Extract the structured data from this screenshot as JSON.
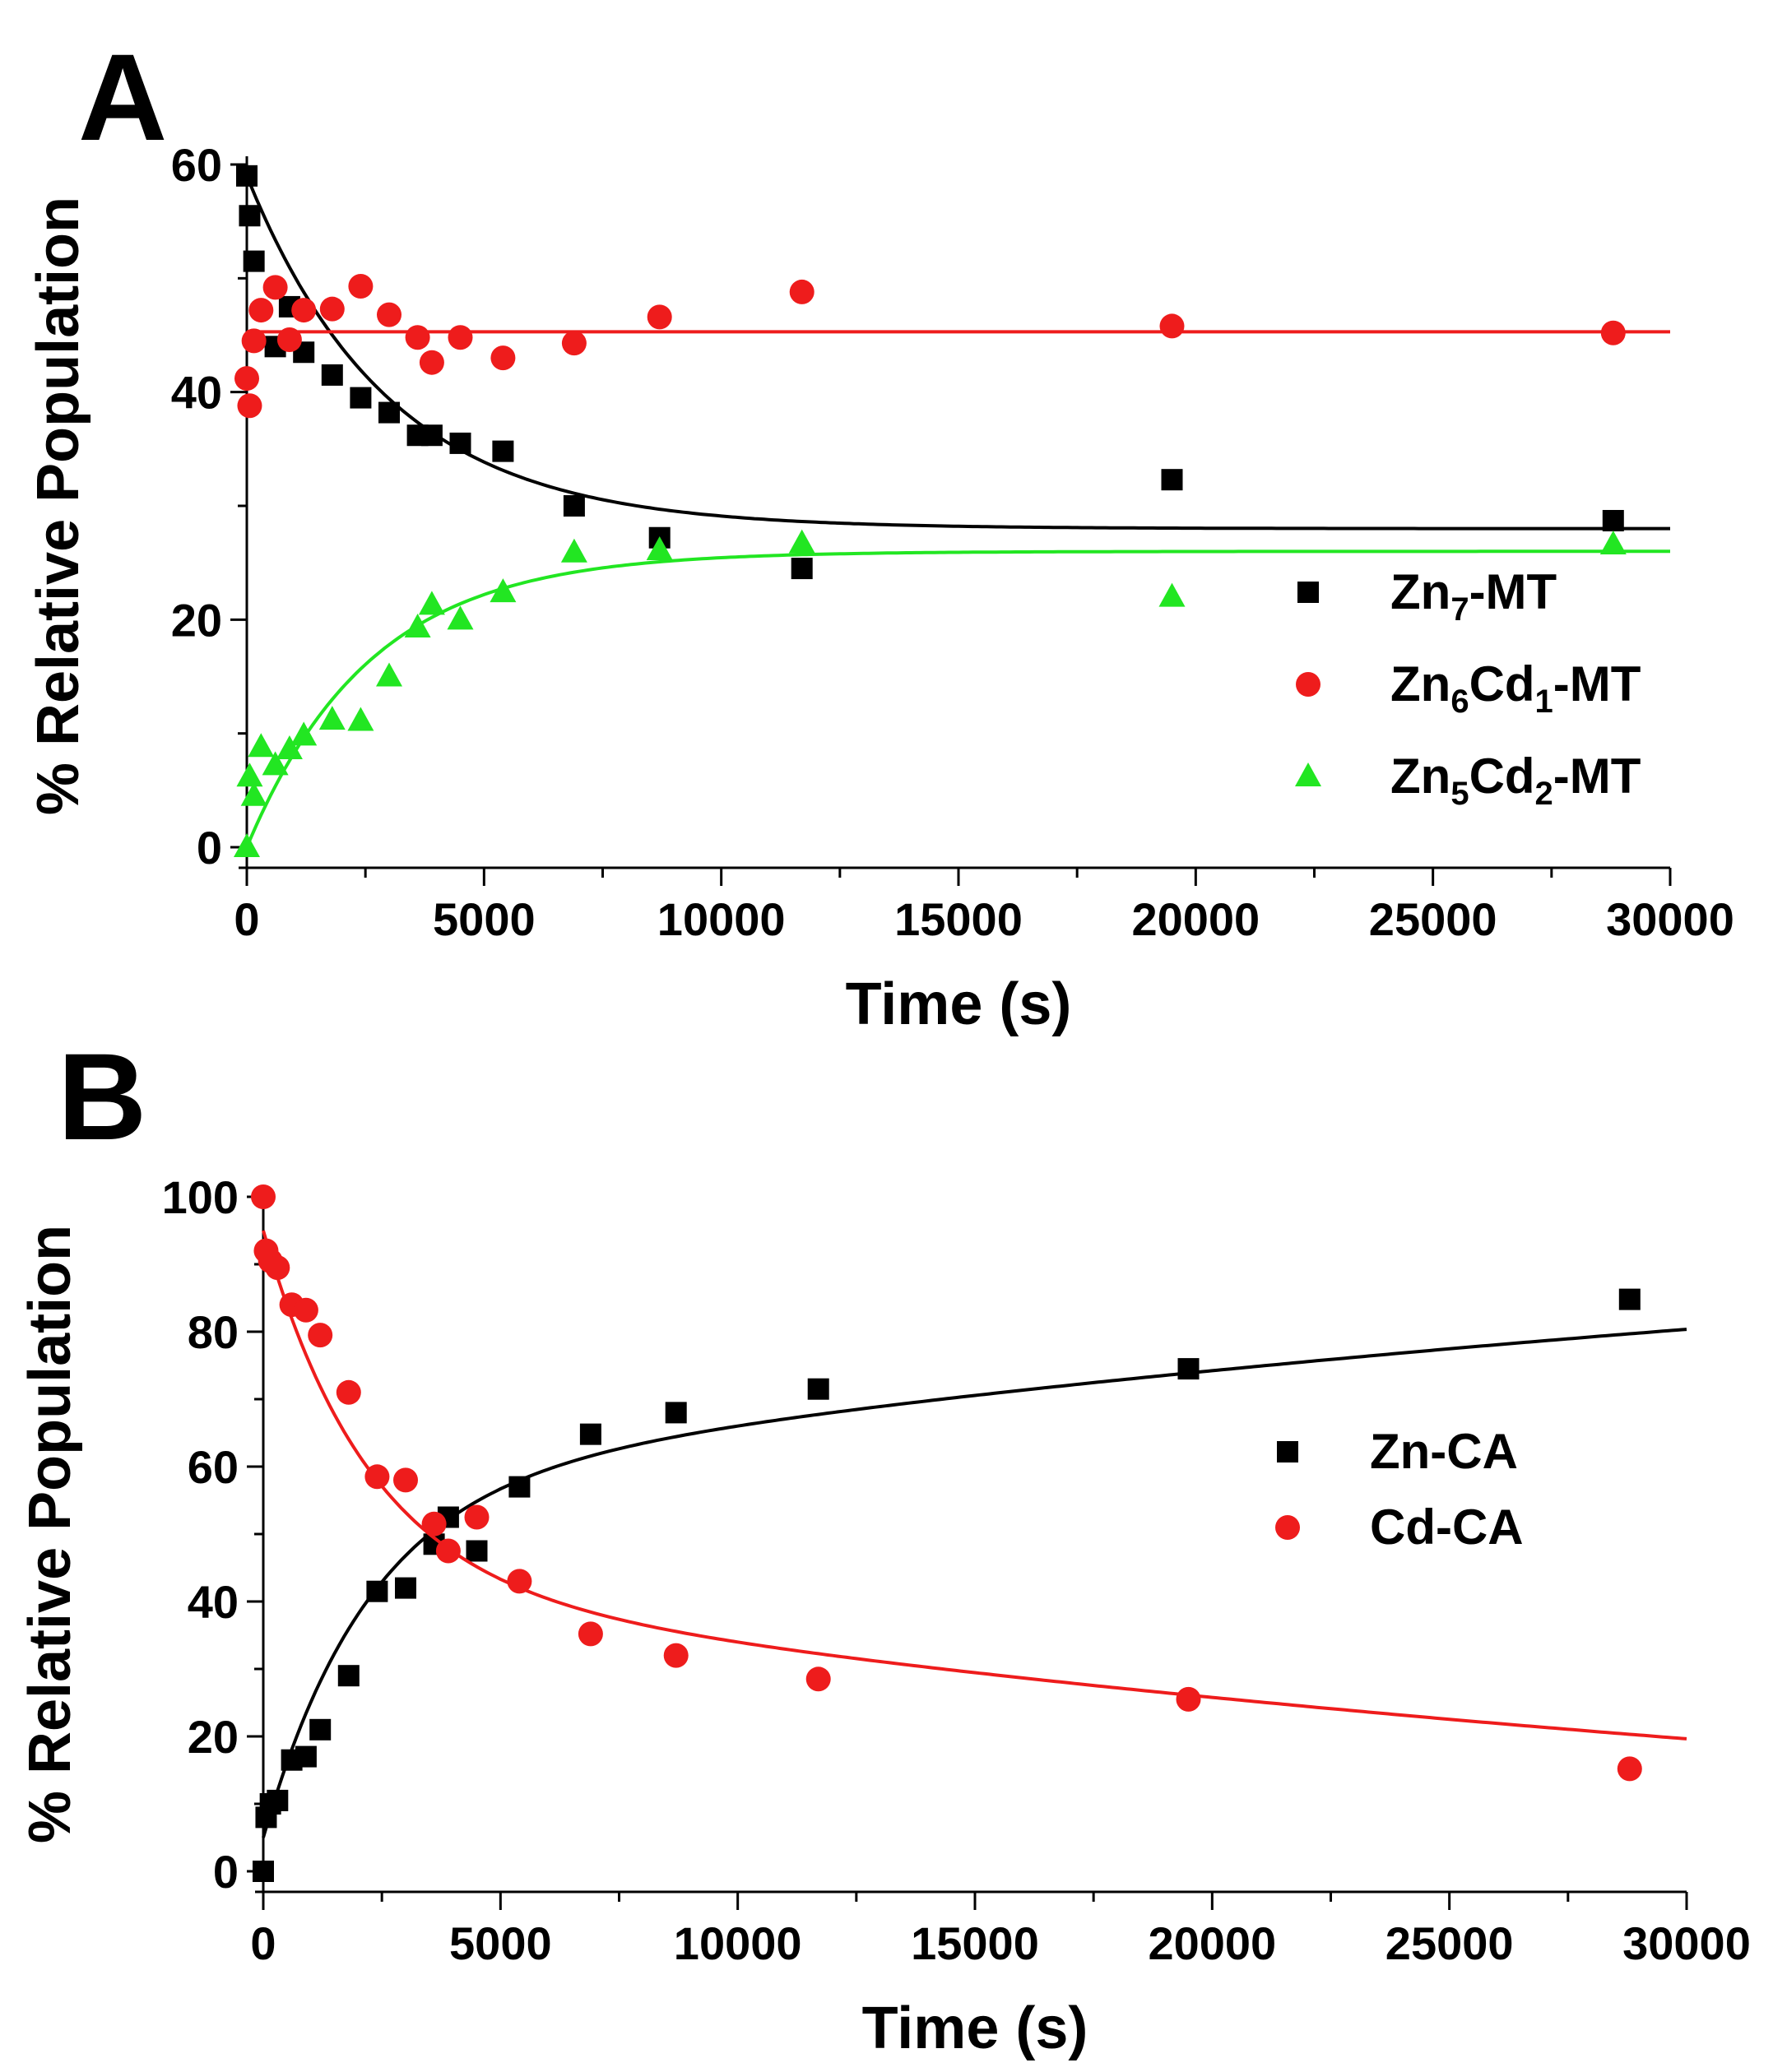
{
  "chart_data": [
    {
      "type": "scatter",
      "panel_label": "A",
      "xlabel": "Time (s)",
      "ylabel": "% Relative Population",
      "xlim": [
        0,
        30000
      ],
      "ylim": [
        0,
        60
      ],
      "xticks": [
        0,
        5000,
        10000,
        15000,
        20000,
        25000,
        30000
      ],
      "yticks": [
        0,
        20,
        40,
        60
      ],
      "grid": false,
      "legend_position": "right",
      "series": [
        {
          "name": "Zn7-MT",
          "legend_parts": [
            [
              "Zn",
              ""
            ],
            [
              "7",
              "sub"
            ],
            [
              "-MT",
              ""
            ]
          ],
          "color": "#000000",
          "marker": "square",
          "points": [
            [
              0,
              59
            ],
            [
              60,
              55.5
            ],
            [
              150,
              51.5
            ],
            [
              600,
              44
            ],
            [
              900,
              47.5
            ],
            [
              1200,
              43.5
            ],
            [
              1800,
              41.5
            ],
            [
              2400,
              39.5
            ],
            [
              3000,
              38.2
            ],
            [
              3600,
              36.2
            ],
            [
              3900,
              36.2
            ],
            [
              4500,
              35.5
            ],
            [
              5400,
              34.8
            ],
            [
              6900,
              30
            ],
            [
              8700,
              27.2
            ],
            [
              11700,
              24.5
            ],
            [
              19500,
              32.3
            ],
            [
              28800,
              28.7
            ]
          ],
          "fit": {
            "model": "exp",
            "c": 28,
            "a": 31,
            "tau": 3000
          }
        },
        {
          "name": "Zn6Cd1-MT",
          "legend_parts": [
            [
              "Zn",
              ""
            ],
            [
              "6",
              "sub"
            ],
            [
              "Cd",
              ""
            ],
            [
              "1",
              "sub"
            ],
            [
              "-MT",
              ""
            ]
          ],
          "color": "#ee1c1c",
          "marker": "circle",
          "points": [
            [
              0,
              41.2
            ],
            [
              60,
              38.8
            ],
            [
              150,
              44.5
            ],
            [
              300,
              47.2
            ],
            [
              600,
              49.2
            ],
            [
              900,
              44.6
            ],
            [
              1200,
              47.2
            ],
            [
              1800,
              47.3
            ],
            [
              2400,
              49.3
            ],
            [
              3000,
              46.8
            ],
            [
              3600,
              44.8
            ],
            [
              3900,
              42.6
            ],
            [
              4500,
              44.8
            ],
            [
              5400,
              43
            ],
            [
              6900,
              44.3
            ],
            [
              8700,
              46.6
            ],
            [
              11700,
              48.8
            ],
            [
              19500,
              45.8
            ],
            [
              28800,
              45.2
            ]
          ],
          "fit": {
            "model": "constant",
            "c": 45.3
          }
        },
        {
          "name": "Zn5Cd2-MT",
          "legend_parts": [
            [
              "Zn",
              ""
            ],
            [
              "5",
              "sub"
            ],
            [
              "Cd",
              ""
            ],
            [
              "2",
              "sub"
            ],
            [
              "-MT",
              ""
            ]
          ],
          "color": "#22e622",
          "marker": "triangle",
          "points": [
            [
              0,
              0
            ],
            [
              60,
              6.2
            ],
            [
              150,
              4.5
            ],
            [
              300,
              8.8
            ],
            [
              600,
              7.2
            ],
            [
              900,
              8.6
            ],
            [
              1200,
              9.8
            ],
            [
              1800,
              11.2
            ],
            [
              2400,
              11.1
            ],
            [
              3000,
              15
            ],
            [
              3600,
              19.3
            ],
            [
              3900,
              21.3
            ],
            [
              4500,
              20
            ],
            [
              5400,
              22.4
            ],
            [
              6900,
              25.9
            ],
            [
              8700,
              26.1
            ],
            [
              11700,
              26.7
            ],
            [
              19500,
              22
            ],
            [
              28800,
              26.6
            ]
          ],
          "fit": {
            "model": "exp",
            "c": 26,
            "a": -26,
            "tau": 2600
          }
        }
      ]
    },
    {
      "type": "scatter",
      "panel_label": "B",
      "xlabel": "Time (s)",
      "ylabel": "% Relative Population",
      "xlim": [
        0,
        30000
      ],
      "ylim": [
        0,
        100
      ],
      "xticks": [
        0,
        5000,
        10000,
        15000,
        20000,
        25000,
        30000
      ],
      "yticks": [
        0,
        20,
        40,
        60,
        80,
        100
      ],
      "grid": false,
      "legend_position": "right",
      "series": [
        {
          "name": "Zn-CA",
          "legend_parts": [
            [
              "Zn-CA",
              ""
            ]
          ],
          "color": "#000000",
          "marker": "square",
          "points": [
            [
              0,
              0
            ],
            [
              60,
              8
            ],
            [
              150,
              10
            ],
            [
              300,
              10.5
            ],
            [
              600,
              16.5
            ],
            [
              900,
              17
            ],
            [
              1200,
              21
            ],
            [
              1800,
              29
            ],
            [
              2400,
              41.5
            ],
            [
              3000,
              42
            ],
            [
              3600,
              48.5
            ],
            [
              3900,
              52.5
            ],
            [
              4500,
              47.5
            ],
            [
              5400,
              57
            ],
            [
              6900,
              64.8
            ],
            [
              8700,
              68
            ],
            [
              11700,
              71.5
            ],
            [
              19500,
              74.5
            ],
            [
              28800,
              84.8
            ]
          ],
          "fit": {
            "model": "biexp",
            "c": 105,
            "a1": -52,
            "tau1": 2200,
            "a2": -48,
            "tau2": 45000
          }
        },
        {
          "name": "Cd-CA",
          "legend_parts": [
            [
              "Cd-CA",
              ""
            ]
          ],
          "color": "#ee1c1c",
          "marker": "circle",
          "points": [
            [
              0,
              100
            ],
            [
              60,
              92
            ],
            [
              150,
              90.5
            ],
            [
              300,
              89.5
            ],
            [
              600,
              84
            ],
            [
              900,
              83.2
            ],
            [
              1200,
              79.5
            ],
            [
              1800,
              71
            ],
            [
              2400,
              58.5
            ],
            [
              3000,
              58
            ],
            [
              3600,
              51.5
            ],
            [
              3900,
              47.5
            ],
            [
              4500,
              52.5
            ],
            [
              5400,
              43
            ],
            [
              6900,
              35.2
            ],
            [
              8700,
              32
            ],
            [
              11700,
              28.5
            ],
            [
              19500,
              25.5
            ],
            [
              28800,
              15.2
            ]
          ],
          "fit": {
            "model": "biexp",
            "c": -5,
            "a1": 52,
            "tau1": 2200,
            "a2": 48,
            "tau2": 45000
          }
        }
      ]
    }
  ]
}
